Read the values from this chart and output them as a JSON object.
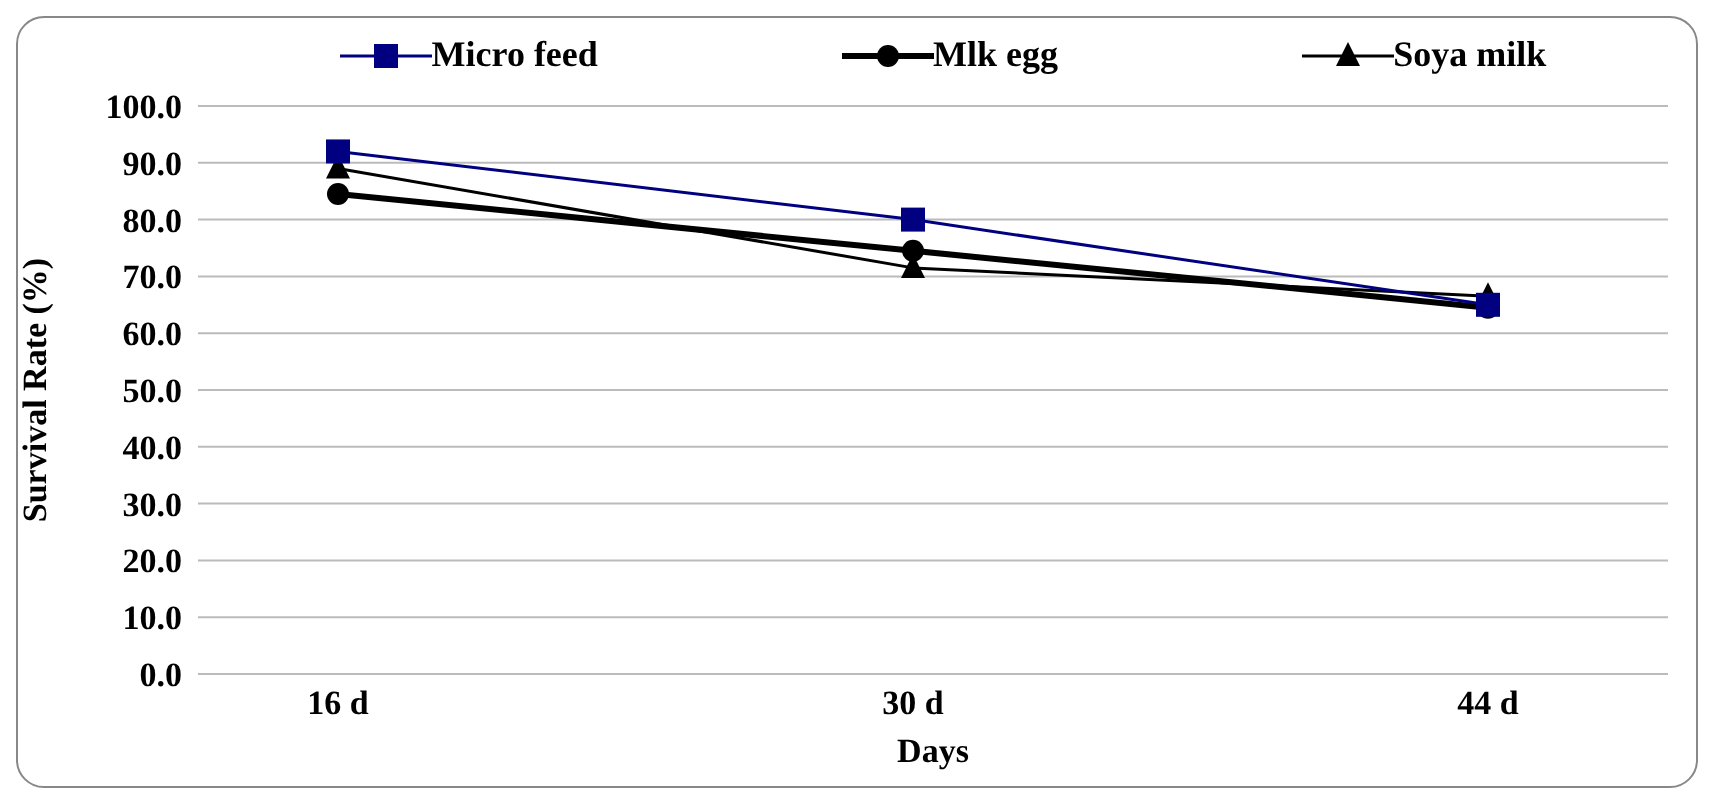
{
  "chart_data": {
    "type": "line",
    "xlabel": "Days",
    "ylabel": "Survival Rate (%)",
    "categories": [
      "16 d",
      "30 d",
      "44 d"
    ],
    "series": [
      {
        "name": "Micro feed",
        "color": "#000080",
        "values": [
          92,
          80,
          65
        ],
        "marker": "square"
      },
      {
        "name": "Mlk egg",
        "color": "#000000",
        "values": [
          84.5,
          74.5,
          64.5
        ],
        "marker": "circle"
      },
      {
        "name": "Soya milk",
        "color": "#000000",
        "values": [
          89,
          71.5,
          66.5
        ],
        "marker": "triangle"
      }
    ],
    "ylim": [
      0,
      100
    ],
    "yticks": [
      {
        "value": 0,
        "label": "0.0"
      },
      {
        "value": 10,
        "label": "10.0"
      },
      {
        "value": 20,
        "label": "20.0"
      },
      {
        "value": 30,
        "label": "30.0"
      },
      {
        "value": 40,
        "label": "40.0"
      },
      {
        "value": 50,
        "label": "50.0"
      },
      {
        "value": 60,
        "label": "60.0"
      },
      {
        "value": 70,
        "label": "70.0"
      },
      {
        "value": 80,
        "label": "80.0"
      },
      {
        "value": 90,
        "label": "90.0"
      },
      {
        "value": 100,
        "label": "100.0"
      }
    ],
    "grid": "y",
    "legend": "top"
  }
}
